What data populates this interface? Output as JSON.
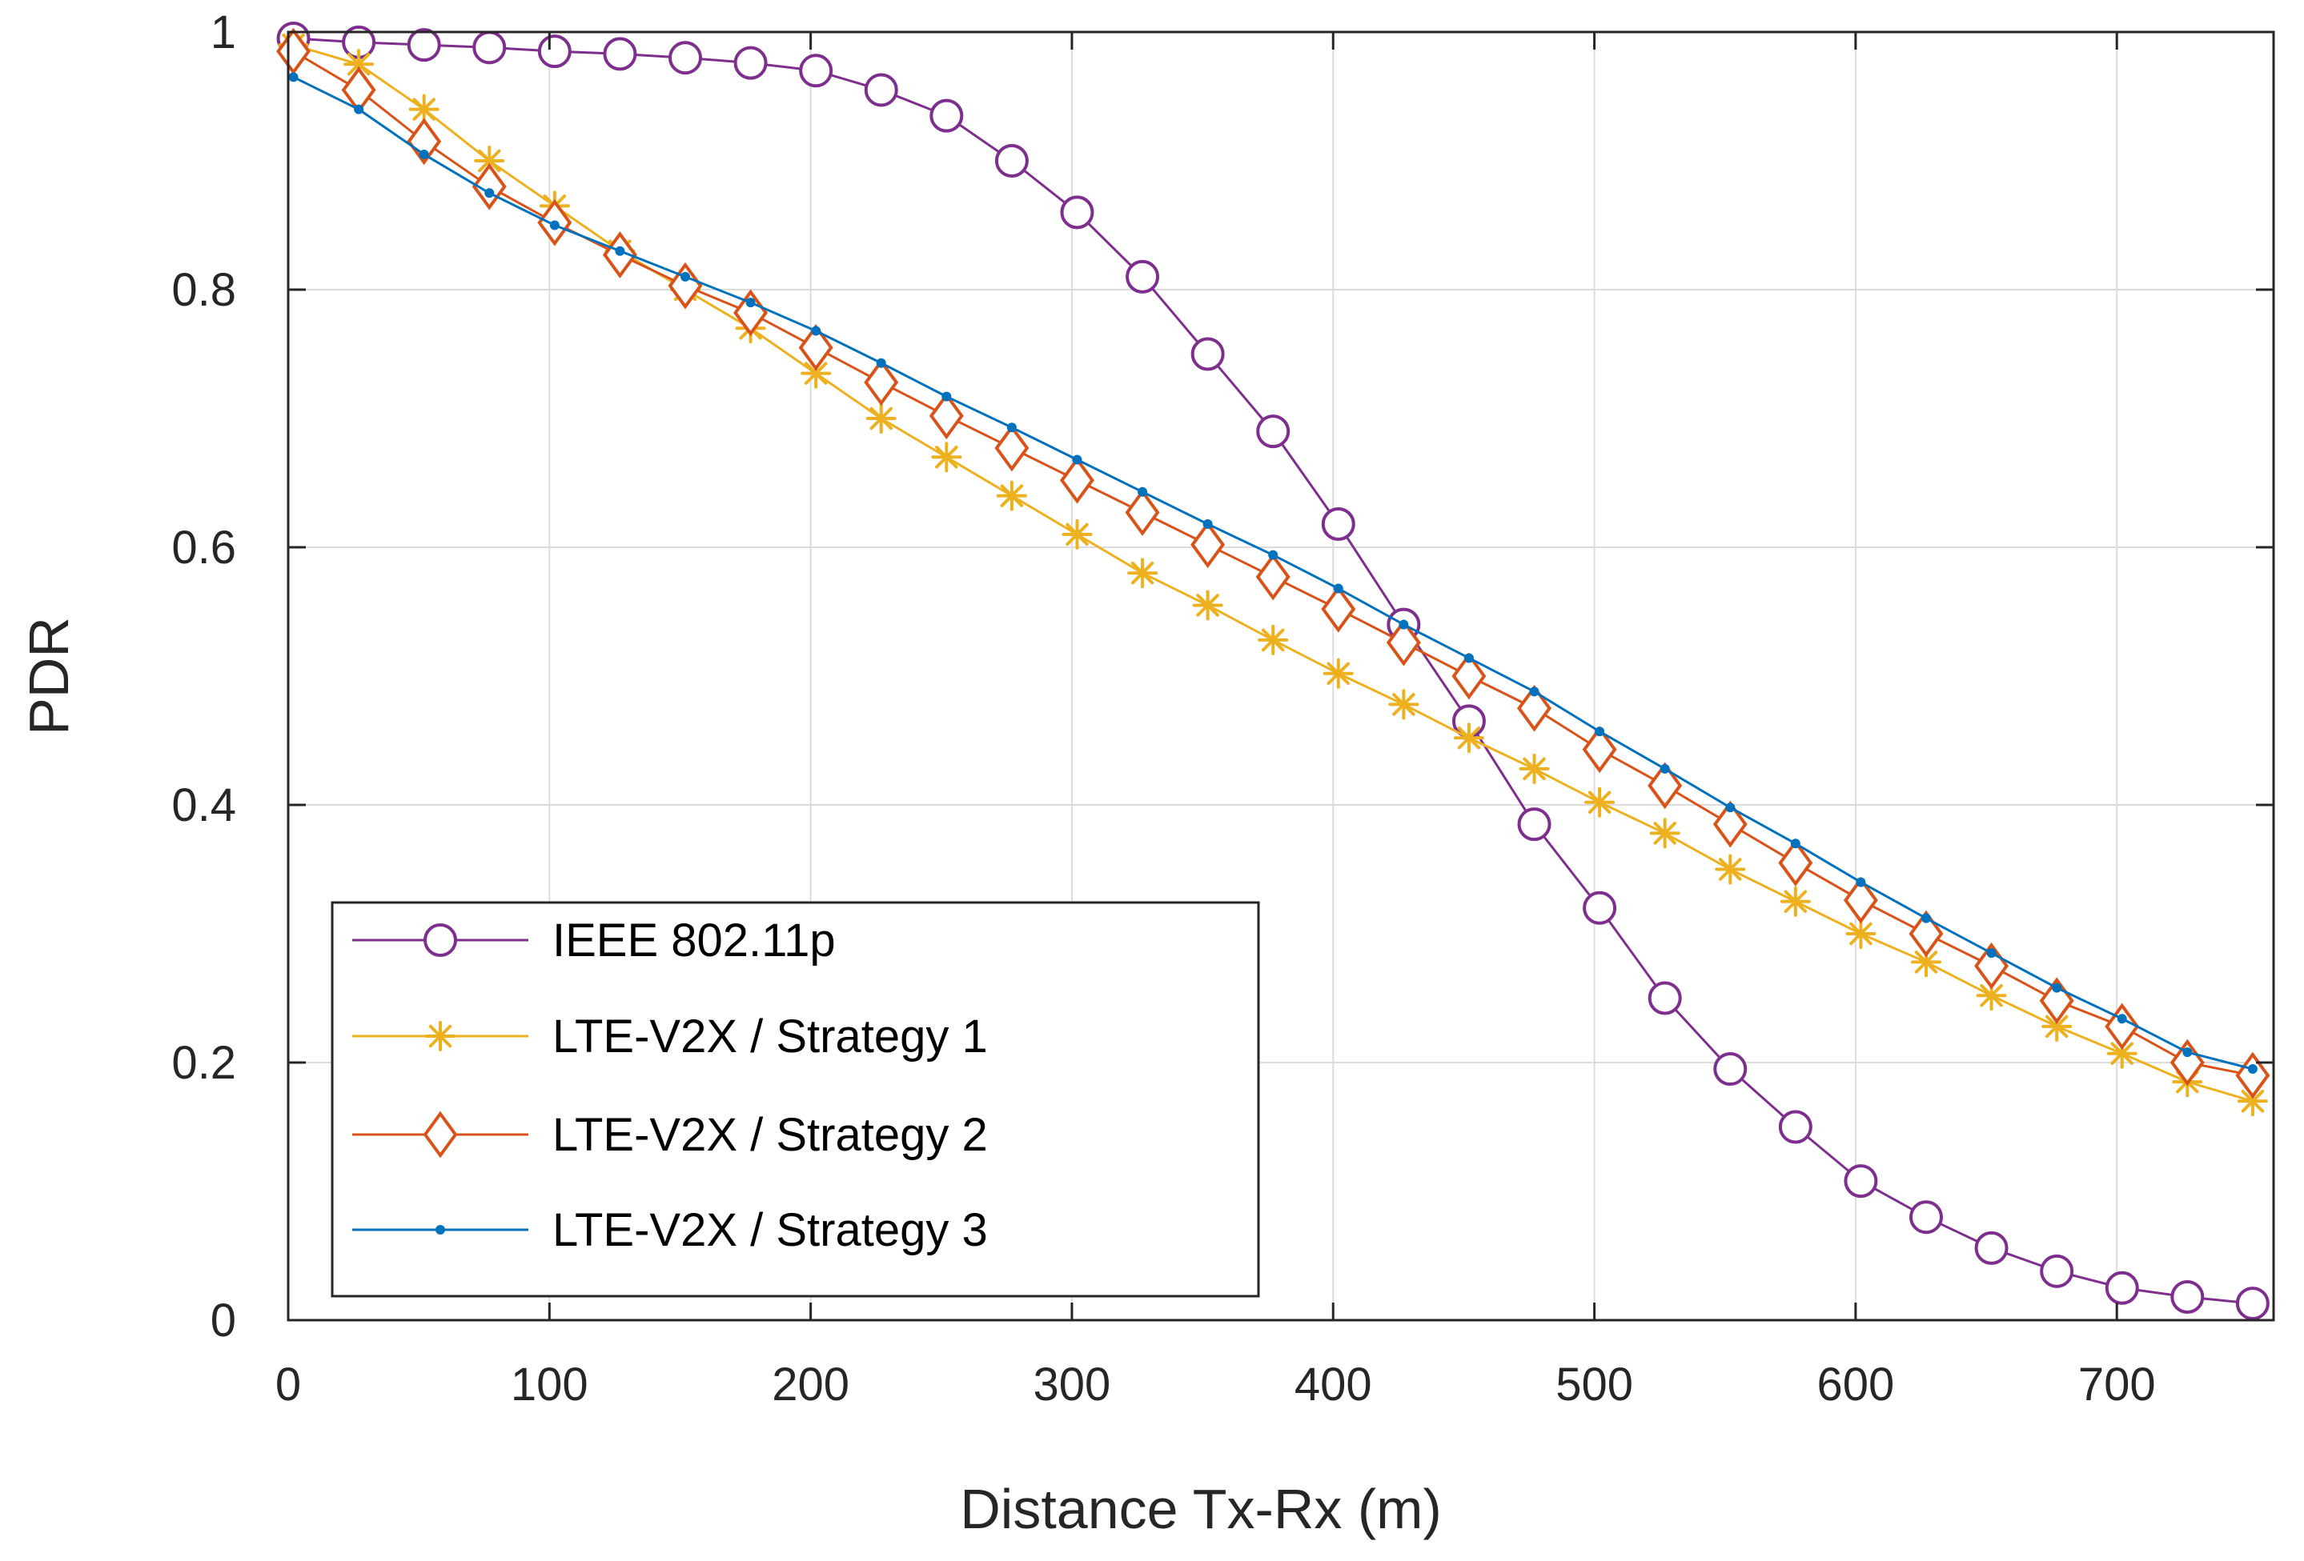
{
  "chart_data": {
    "type": "line",
    "title": "",
    "xlabel": "Distance Tx-Rx (m)",
    "ylabel": "PDR",
    "xlim": [
      0,
      760
    ],
    "ylim": [
      0,
      1
    ],
    "xticks": [
      0,
      100,
      200,
      300,
      400,
      500,
      600,
      700
    ],
    "yticks": [
      0,
      0.2,
      0.4,
      0.6,
      0.8,
      1
    ],
    "xtick_labels": [
      "0",
      "100",
      "200",
      "300",
      "400",
      "500",
      "600",
      "700"
    ],
    "ytick_labels": [
      "0",
      "0.2",
      "0.4",
      "0.6",
      "0.8",
      "1"
    ],
    "grid": true,
    "legend_position": "bottom-left",
    "x": [
      2,
      27,
      52,
      77,
      102,
      127,
      152,
      177,
      202,
      227,
      252,
      277,
      302,
      327,
      352,
      377,
      402,
      427,
      452,
      477,
      502,
      527,
      552,
      577,
      602,
      627,
      652,
      677,
      702,
      727,
      752
    ],
    "series": [
      {
        "name": "IEEE 802.11p",
        "color": "#7e2f8e",
        "marker": "circle",
        "values": [
          0.995,
          0.992,
          0.99,
          0.988,
          0.985,
          0.983,
          0.98,
          0.976,
          0.97,
          0.955,
          0.935,
          0.9,
          0.86,
          0.81,
          0.75,
          0.69,
          0.618,
          0.54,
          0.465,
          0.385,
          0.32,
          0.25,
          0.195,
          0.15,
          0.108,
          0.08,
          0.056,
          0.038,
          0.025,
          0.018,
          0.013
        ]
      },
      {
        "name": "LTE-V2X / Strategy 1",
        "color": "#edb120",
        "marker": "asterisk",
        "values": [
          0.99,
          0.975,
          0.94,
          0.9,
          0.865,
          0.83,
          0.8,
          0.77,
          0.735,
          0.7,
          0.67,
          0.64,
          0.61,
          0.58,
          0.555,
          0.528,
          0.502,
          0.478,
          0.452,
          0.428,
          0.402,
          0.378,
          0.35,
          0.325,
          0.3,
          0.278,
          0.252,
          0.228,
          0.207,
          0.185,
          0.17
        ]
      },
      {
        "name": "LTE-V2X / Strategy 2",
        "color": "#d95319",
        "marker": "diamond",
        "values": [
          0.985,
          0.955,
          0.915,
          0.88,
          0.852,
          0.827,
          0.803,
          0.782,
          0.755,
          0.728,
          0.702,
          0.677,
          0.652,
          0.627,
          0.602,
          0.577,
          0.552,
          0.526,
          0.5,
          0.475,
          0.443,
          0.415,
          0.385,
          0.355,
          0.326,
          0.3,
          0.275,
          0.248,
          0.228,
          0.2,
          0.19
        ]
      },
      {
        "name": "LTE-V2X / Strategy 3",
        "color": "#0072bd",
        "marker": "dot",
        "values": [
          0.965,
          0.94,
          0.905,
          0.875,
          0.85,
          0.83,
          0.81,
          0.79,
          0.768,
          0.743,
          0.717,
          0.693,
          0.668,
          0.643,
          0.618,
          0.594,
          0.568,
          0.54,
          0.514,
          0.488,
          0.457,
          0.428,
          0.398,
          0.37,
          0.34,
          0.312,
          0.285,
          0.258,
          0.234,
          0.208,
          0.195
        ]
      }
    ]
  }
}
